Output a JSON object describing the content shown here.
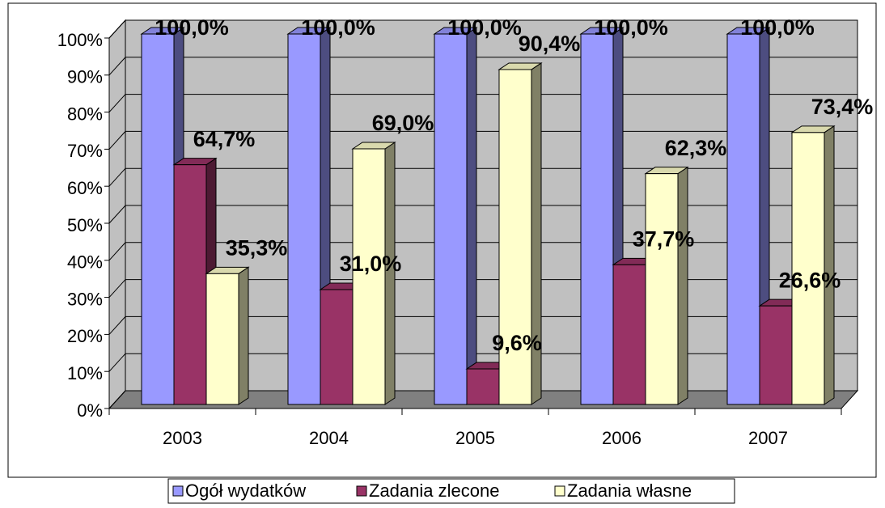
{
  "chart_data": {
    "type": "bar3d",
    "categories": [
      "2003",
      "2004",
      "2005",
      "2006",
      "2007"
    ],
    "series": [
      {
        "name": "Ogół wydatków",
        "color": "#9999ff",
        "values": [
          100.0,
          100.0,
          100.0,
          100.0,
          100.0
        ],
        "value_labels": [
          "100,0%",
          "100,0%",
          "100,0%",
          "100,0%",
          "100,0%"
        ]
      },
      {
        "name": "Zadania zlecone",
        "color": "#993366",
        "values": [
          64.7,
          31.0,
          9.6,
          37.7,
          26.6
        ],
        "value_labels": [
          "64,7%",
          "31,0%",
          "9,6%",
          "37,7%",
          "26,6%"
        ]
      },
      {
        "name": "Zadania własne",
        "color": "#ffffcc",
        "values": [
          35.3,
          69.0,
          90.4,
          62.3,
          73.4
        ],
        "value_labels": [
          "35,3%",
          "69,0%",
          "90,4%",
          "62,3%",
          "73,4%"
        ]
      }
    ],
    "ylim": [
      0,
      100
    ],
    "yticks": [
      {
        "value": 0,
        "label": "0%"
      },
      {
        "value": 10,
        "label": "10%"
      },
      {
        "value": 20,
        "label": "20%"
      },
      {
        "value": 30,
        "label": "30%"
      },
      {
        "value": 40,
        "label": "40%"
      },
      {
        "value": 50,
        "label": "50%"
      },
      {
        "value": 60,
        "label": "60%"
      },
      {
        "value": 70,
        "label": "70%"
      },
      {
        "value": 80,
        "label": "80%"
      },
      {
        "value": 90,
        "label": "90%"
      },
      {
        "value": 100,
        "label": "100%"
      }
    ],
    "grid": true,
    "legend": "bottom"
  }
}
